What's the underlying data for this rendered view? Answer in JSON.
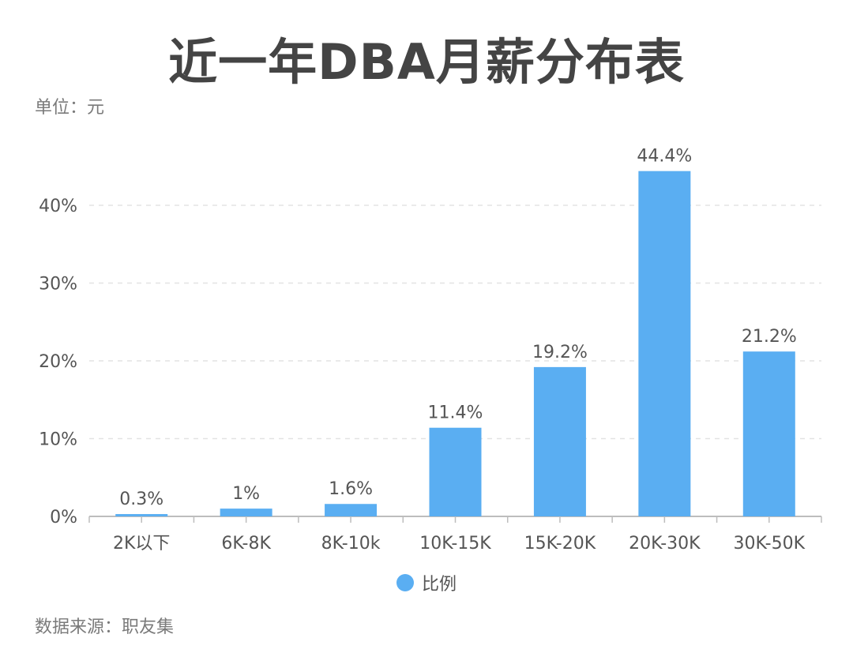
{
  "title": "近一年DBA月薪分布表",
  "unit_label": "单位：元",
  "source_label": "数据来源：职友集",
  "colors": {
    "bar": "#5aaef2",
    "grid": "#e3e3e3",
    "axis": "#bdbdbd",
    "text": "#555555"
  },
  "chart_data": {
    "type": "bar",
    "title": "近一年DBA月薪分布表",
    "categories": [
      "2K以下",
      "6K-8K",
      "8K-10k",
      "10K-15K",
      "15K-20K",
      "20K-30K",
      "30K-50K"
    ],
    "series": [
      {
        "name": "比例",
        "values": [
          0.3,
          1,
          1.6,
          11.4,
          19.2,
          44.4,
          21.2
        ]
      }
    ],
    "data_labels": [
      "0.3%",
      "1%",
      "1.6%",
      "11.4%",
      "19.2%",
      "44.4%",
      "21.2%"
    ],
    "y_ticks": [
      "0%",
      "10%",
      "20%",
      "30%",
      "40%"
    ],
    "y_tick_values": [
      0,
      10,
      20,
      30,
      40
    ],
    "ylim": [
      0,
      40
    ],
    "grid": true,
    "legend_position": "bottom-center"
  }
}
